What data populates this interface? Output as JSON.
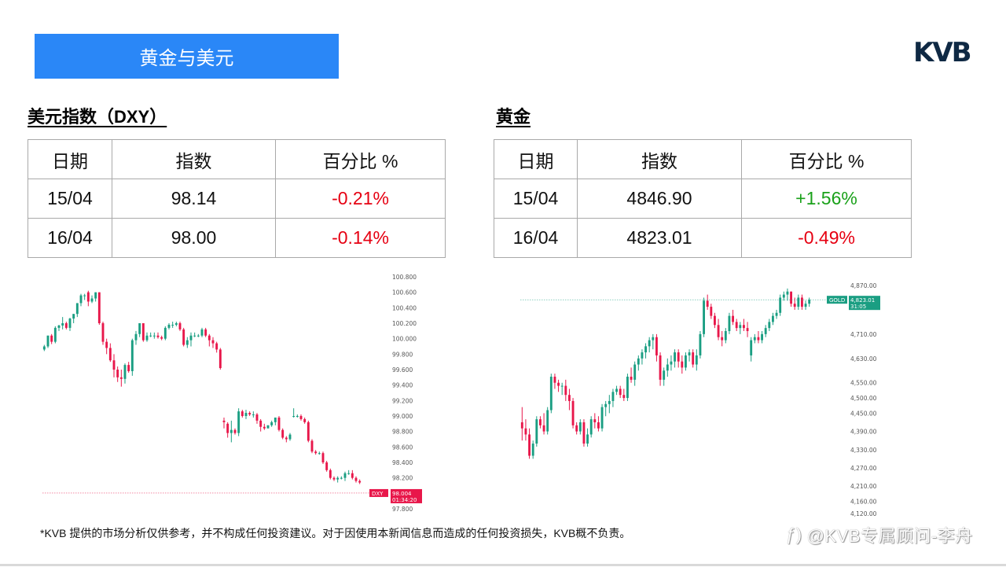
{
  "banner": {
    "title": "黄金与美元"
  },
  "logo": {
    "text": "KVB"
  },
  "dxy": {
    "title": "美元指数（DXY）",
    "headers": [
      "日期",
      "指数",
      "百分比 %"
    ],
    "rows": [
      {
        "date": "15/04",
        "value": "98.14",
        "pct": "-0.21%",
        "dir": "neg"
      },
      {
        "date": "16/04",
        "value": "98.00",
        "pct": "-0.14%",
        "dir": "neg"
      }
    ]
  },
  "gold": {
    "title": "黄金",
    "headers": [
      "日期",
      "指数",
      "百分比 %"
    ],
    "rows": [
      {
        "date": "15/04",
        "value": "4846.90",
        "pct": "+1.56%",
        "dir": "pos"
      },
      {
        "date": "16/04",
        "value": "4823.01",
        "pct": "-0.49%",
        "dir": "neg"
      }
    ]
  },
  "colors": {
    "up": "#1a9e82",
    "down": "#e8174a",
    "banner": "#2a87f7",
    "neg_text": "#e60012",
    "pos_text": "#1aa11a"
  },
  "chart_data": [
    {
      "type": "candlestick",
      "title": "DXY",
      "symbol_tag": "DXY",
      "last_price_label": "98.004",
      "countdown_label": "01:34:20",
      "y_ticks": [
        "100.800",
        "100.600",
        "100.400",
        "100.200",
        "100.000",
        "99.800",
        "99.600",
        "99.400",
        "99.200",
        "99.000",
        "98.800",
        "98.600",
        "98.400",
        "98.200",
        "97.800"
      ],
      "ylim": [
        97.8,
        100.8
      ],
      "last_price": 98.004,
      "candles": [
        [
          99.86,
          99.92,
          99.84,
          99.9
        ],
        [
          99.9,
          100.04,
          99.88,
          100.04
        ],
        [
          100.04,
          100.06,
          99.93,
          99.96
        ],
        [
          99.96,
          100.16,
          99.94,
          100.14
        ],
        [
          100.14,
          100.18,
          100.1,
          100.17
        ],
        [
          100.17,
          100.28,
          100.12,
          100.2
        ],
        [
          100.2,
          100.22,
          100.12,
          100.14
        ],
        [
          100.14,
          100.27,
          100.1,
          100.26
        ],
        [
          100.26,
          100.32,
          100.2,
          100.32
        ],
        [
          100.32,
          100.46,
          100.28,
          100.46
        ],
        [
          100.46,
          100.58,
          100.42,
          100.56
        ],
        [
          100.56,
          100.58,
          100.5,
          100.56
        ],
        [
          100.6,
          100.62,
          100.42,
          100.48
        ],
        [
          100.48,
          100.56,
          100.46,
          100.52
        ],
        [
          100.52,
          100.6,
          100.48,
          100.6
        ],
        [
          100.6,
          100.6,
          100.18,
          100.2
        ],
        [
          100.2,
          100.22,
          99.92,
          99.96
        ],
        [
          99.96,
          100.0,
          99.8,
          99.88
        ],
        [
          99.88,
          99.94,
          99.7,
          99.72
        ],
        [
          99.72,
          99.8,
          99.5,
          99.6
        ],
        [
          99.6,
          99.64,
          99.44,
          99.5
        ],
        [
          99.5,
          99.6,
          99.38,
          99.48
        ],
        [
          99.48,
          99.68,
          99.42,
          99.66
        ],
        [
          99.66,
          99.7,
          99.56,
          99.58
        ],
        [
          99.58,
          100.0,
          99.52,
          99.98
        ],
        [
          99.98,
          100.1,
          99.92,
          100.06
        ],
        [
          100.06,
          100.2,
          100.02,
          100.2
        ],
        [
          100.2,
          100.2,
          99.96,
          99.98
        ],
        [
          99.98,
          100.08,
          99.96,
          100.04
        ],
        [
          100.04,
          100.08,
          100.02,
          100.04
        ],
        [
          100.04,
          100.08,
          100.0,
          100.04
        ],
        [
          100.04,
          100.08,
          100.0,
          100.02
        ],
        [
          100.02,
          100.04,
          99.98,
          100.0
        ],
        [
          100.0,
          100.16,
          99.98,
          100.14
        ],
        [
          100.14,
          100.2,
          100.12,
          100.18
        ],
        [
          100.18,
          100.22,
          100.14,
          100.18
        ],
        [
          100.18,
          100.22,
          100.16,
          100.2
        ],
        [
          100.2,
          100.22,
          100.1,
          100.12
        ],
        [
          100.12,
          100.14,
          99.9,
          99.92
        ],
        [
          99.92,
          100.02,
          99.88,
          99.98
        ],
        [
          99.98,
          100.08,
          99.9,
          100.04
        ],
        [
          100.04,
          100.08,
          100.02,
          100.04
        ],
        [
          100.04,
          100.06,
          100.02,
          100.04
        ],
        [
          100.04,
          100.14,
          100.02,
          100.12
        ],
        [
          100.12,
          100.14,
          100.02,
          100.04
        ],
        [
          100.04,
          100.06,
          99.9,
          99.98
        ],
        [
          99.98,
          100.02,
          99.88,
          99.94
        ],
        [
          99.94,
          99.96,
          99.82,
          99.86
        ],
        [
          99.86,
          99.88,
          99.6,
          99.62
        ],
        [
          98.94,
          98.98,
          98.84,
          98.92
        ],
        [
          98.9,
          98.92,
          98.72,
          98.78
        ],
        [
          98.78,
          98.94,
          98.66,
          98.82
        ],
        [
          98.82,
          98.84,
          98.76,
          98.78
        ],
        [
          98.78,
          99.1,
          98.74,
          99.06
        ],
        [
          99.06,
          99.08,
          98.98,
          99.0
        ],
        [
          99.0,
          99.08,
          98.96,
          99.04
        ],
        [
          99.04,
          99.06,
          99.0,
          99.02
        ],
        [
          99.02,
          99.06,
          98.98,
          99.02
        ],
        [
          99.02,
          99.04,
          98.9,
          98.94
        ],
        [
          98.94,
          98.96,
          98.8,
          98.86
        ],
        [
          98.86,
          98.9,
          98.82,
          98.84
        ],
        [
          98.84,
          98.88,
          98.84,
          98.88
        ],
        [
          98.88,
          98.94,
          98.86,
          98.92
        ],
        [
          98.92,
          98.98,
          98.88,
          98.98
        ],
        [
          98.98,
          99.0,
          98.8,
          98.82
        ],
        [
          98.82,
          98.84,
          98.7,
          98.72
        ],
        [
          98.72,
          98.74,
          98.66,
          98.7
        ],
        [
          98.7,
          98.78,
          98.68,
          98.76
        ],
        [
          99.0,
          99.1,
          98.98,
          99.0
        ],
        [
          99.0,
          99.02,
          98.98,
          99.0
        ],
        [
          99.0,
          99.02,
          98.94,
          98.96
        ],
        [
          98.96,
          98.98,
          98.9,
          98.92
        ],
        [
          98.92,
          98.94,
          98.66,
          98.68
        ],
        [
          98.68,
          98.7,
          98.52,
          98.54
        ],
        [
          98.54,
          98.56,
          98.5,
          98.52
        ],
        [
          98.52,
          98.54,
          98.5,
          98.52
        ],
        [
          98.52,
          98.54,
          98.38,
          98.4
        ],
        [
          98.4,
          98.42,
          98.28,
          98.3
        ],
        [
          98.3,
          98.32,
          98.18,
          98.2
        ],
        [
          98.2,
          98.22,
          98.16,
          98.18
        ],
        [
          98.18,
          98.22,
          98.14,
          98.2
        ],
        [
          98.2,
          98.22,
          98.18,
          98.2
        ],
        [
          98.2,
          98.28,
          98.16,
          98.26
        ],
        [
          98.26,
          98.3,
          98.24,
          98.26
        ],
        [
          98.26,
          98.3,
          98.18,
          98.2
        ],
        [
          98.2,
          98.22,
          98.14,
          98.16
        ],
        [
          98.16,
          98.18,
          98.12,
          98.14
        ]
      ]
    },
    {
      "type": "candlestick",
      "title": "GOLD",
      "symbol_tag": "GOLD",
      "last_price_label": "4,823.01",
      "countdown_label": "31:05",
      "y_ticks": [
        "4,870.00",
        "4,710.00",
        "4,630.00",
        "4,550.00",
        "4,500.00",
        "4,450.00",
        "4,390.00",
        "4,330.00",
        "4,270.00",
        "4,210.00",
        "4,160.00",
        "4,120.00"
      ],
      "ylim": [
        4120,
        4870
      ],
      "last_price": 4823.01,
      "candles": [
        [
          4420,
          4470,
          4360,
          4400
        ],
        [
          4400,
          4430,
          4360,
          4380
        ],
        [
          4380,
          4400,
          4300,
          4310
        ],
        [
          4310,
          4360,
          4300,
          4350
        ],
        [
          4350,
          4440,
          4340,
          4430
        ],
        [
          4430,
          4440,
          4400,
          4410
        ],
        [
          4410,
          4450,
          4380,
          4390
        ],
        [
          4390,
          4470,
          4380,
          4460
        ],
        [
          4460,
          4580,
          4450,
          4570
        ],
        [
          4570,
          4580,
          4530,
          4550
        ],
        [
          4550,
          4560,
          4520,
          4540
        ],
        [
          4540,
          4550,
          4510,
          4540
        ],
        [
          4540,
          4560,
          4490,
          4510
        ],
        [
          4510,
          4530,
          4460,
          4490
        ],
        [
          4490,
          4500,
          4400,
          4410
        ],
        [
          4410,
          4420,
          4380,
          4390
        ],
        [
          4390,
          4430,
          4380,
          4420
        ],
        [
          4420,
          4430,
          4340,
          4350
        ],
        [
          4350,
          4400,
          4340,
          4380
        ],
        [
          4380,
          4440,
          4370,
          4430
        ],
        [
          4430,
          4450,
          4400,
          4420
        ],
        [
          4420,
          4440,
          4390,
          4400
        ],
        [
          4400,
          4480,
          4390,
          4470
        ],
        [
          4470,
          4490,
          4440,
          4480
        ],
        [
          4480,
          4510,
          4450,
          4490
        ],
        [
          4490,
          4530,
          4470,
          4520
        ],
        [
          4520,
          4540,
          4510,
          4530
        ],
        [
          4530,
          4540,
          4500,
          4510
        ],
        [
          4510,
          4530,
          4490,
          4500
        ],
        [
          4500,
          4580,
          4490,
          4570
        ],
        [
          4570,
          4600,
          4550,
          4560
        ],
        [
          4560,
          4620,
          4540,
          4610
        ],
        [
          4610,
          4640,
          4590,
          4630
        ],
        [
          4630,
          4660,
          4610,
          4650
        ],
        [
          4650,
          4680,
          4630,
          4670
        ],
        [
          4670,
          4700,
          4650,
          4690
        ],
        [
          4690,
          4710,
          4660,
          4700
        ],
        [
          4700,
          4710,
          4620,
          4640
        ],
        [
          4640,
          4650,
          4540,
          4560
        ],
        [
          4560,
          4600,
          4540,
          4590
        ],
        [
          4590,
          4630,
          4570,
          4610
        ],
        [
          4610,
          4640,
          4590,
          4620
        ],
        [
          4620,
          4660,
          4600,
          4650
        ],
        [
          4650,
          4660,
          4600,
          4620
        ],
        [
          4620,
          4640,
          4580,
          4600
        ],
        [
          4600,
          4650,
          4590,
          4640
        ],
        [
          4640,
          4660,
          4620,
          4650
        ],
        [
          4650,
          4660,
          4600,
          4610
        ],
        [
          4610,
          4660,
          4590,
          4640
        ],
        [
          4640,
          4720,
          4630,
          4710
        ],
        [
          4710,
          4830,
          4700,
          4820
        ],
        [
          4820,
          4840,
          4790,
          4800
        ],
        [
          4800,
          4810,
          4760,
          4770
        ],
        [
          4770,
          4780,
          4730,
          4740
        ],
        [
          4740,
          4760,
          4690,
          4700
        ],
        [
          4700,
          4720,
          4670,
          4690
        ],
        [
          4690,
          4730,
          4680,
          4720
        ],
        [
          4720,
          4780,
          4710,
          4770
        ],
        [
          4770,
          4790,
          4740,
          4750
        ],
        [
          4750,
          4760,
          4720,
          4730
        ],
        [
          4730,
          4750,
          4710,
          4740
        ],
        [
          4740,
          4760,
          4720,
          4730
        ],
        [
          4730,
          4750,
          4700,
          4720
        ],
        [
          4640,
          4700,
          4620,
          4690
        ],
        [
          4690,
          4710,
          4680,
          4700
        ],
        [
          4700,
          4720,
          4680,
          4690
        ],
        [
          4690,
          4720,
          4680,
          4710
        ],
        [
          4710,
          4740,
          4700,
          4730
        ],
        [
          4730,
          4760,
          4720,
          4750
        ],
        [
          4750,
          4780,
          4740,
          4770
        ],
        [
          4770,
          4790,
          4760,
          4780
        ],
        [
          4780,
          4840,
          4770,
          4830
        ],
        [
          4830,
          4850,
          4820,
          4840
        ],
        [
          4840,
          4860,
          4820,
          4850
        ],
        [
          4850,
          4850,
          4800,
          4810
        ],
        [
          4810,
          4830,
          4790,
          4800
        ],
        [
          4800,
          4840,
          4790,
          4830
        ],
        [
          4830,
          4840,
          4790,
          4800
        ],
        [
          4800,
          4820,
          4790,
          4810
        ],
        [
          4810,
          4830,
          4800,
          4823
        ]
      ]
    }
  ],
  "disclaimer": "*KVB 提供的市场分析仅供参考，并不构成任何投资建议。对于因使用本新闻信息而造成的任何投资损失，KVB概不负责。",
  "watermark": {
    "text": "@KVB专属顾问-李舟"
  }
}
